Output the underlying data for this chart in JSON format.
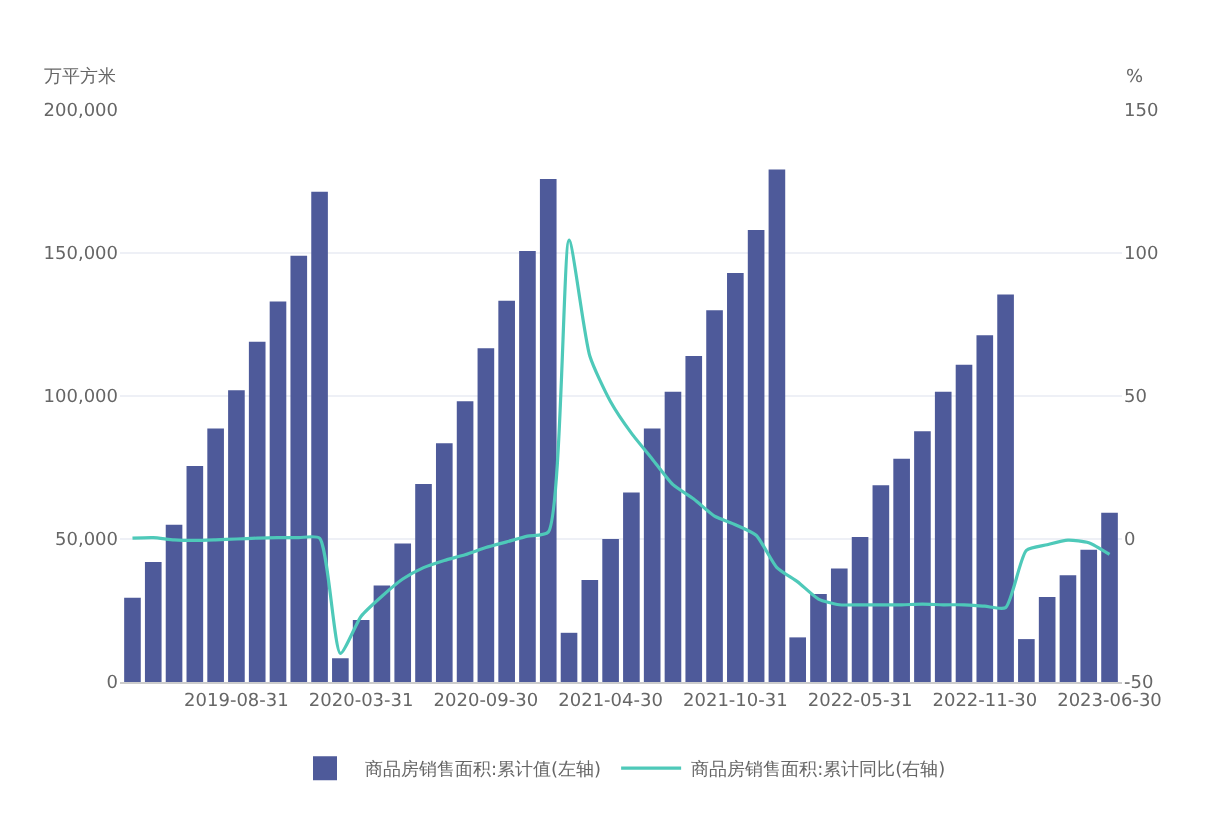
{
  "chart_data": {
    "type": "bar",
    "categories": [
      null,
      null,
      null,
      null,
      null,
      "2019-08-31",
      null,
      null,
      null,
      null,
      null,
      "2020-03-31",
      null,
      null,
      null,
      null,
      null,
      "2020-09-30",
      null,
      null,
      null,
      null,
      null,
      "2021-04-30",
      null,
      null,
      null,
      null,
      null,
      "2021-10-31",
      null,
      null,
      null,
      null,
      null,
      "2022-05-31",
      null,
      null,
      null,
      null,
      null,
      "2022-11-30",
      null,
      null,
      null,
      null,
      null,
      "2023-06-30"
    ],
    "series": [
      {
        "name": "商品房销售面积:累计值(左轴)",
        "color": "#4e5a9a",
        "values": [
          29500,
          42000,
          55000,
          75500,
          88600,
          102000,
          119000,
          133000,
          149000,
          171400,
          8300,
          21700,
          33700,
          48400,
          69200,
          83500,
          98200,
          116700,
          133300,
          150700,
          175900,
          17200,
          35700,
          50000,
          66300,
          88600,
          101500,
          114000,
          130000,
          143000,
          158000,
          179200,
          15600,
          30800,
          39700,
          50700,
          68800,
          78100,
          87700,
          101500,
          110900,
          121200,
          135500,
          15000,
          29700,
          37300,
          46200,
          59200
        ]
      },
      {
        "name": "商品房销售面积:累计同比(右轴)",
        "type": "line",
        "axis": "y2",
        "color": "#4ec9b9",
        "values": [
          0.3,
          0.5,
          -0.3,
          -0.5,
          -0.3,
          0,
          0.3,
          0.5,
          0.5,
          0.3,
          -40,
          -27,
          -20,
          -14,
          -10,
          -7.5,
          -5.5,
          -3,
          -1,
          1,
          2.4,
          104.5,
          64,
          48,
          37,
          28,
          19,
          14,
          8,
          5,
          1.3,
          -10,
          -15,
          -21,
          -23,
          -23,
          -23,
          -23,
          -22.8,
          -23,
          -23,
          -23.5,
          -24,
          -4,
          -2,
          -0.4,
          -1.3,
          -5.4
        ]
      }
    ],
    "ylabel": "万平方米",
    "y2label": "%",
    "ylim": [
      0,
      200000
    ],
    "yticks": [
      {
        "value": 0,
        "label": "0"
      },
      {
        "value": 50000,
        "label": "50,000"
      },
      {
        "value": 100000,
        "label": "100,000"
      },
      {
        "value": 150000,
        "label": "150,000"
      },
      {
        "value": 200000,
        "label": "200,000"
      }
    ],
    "y2lim": [
      -50,
      150
    ],
    "y2ticks": [
      -50,
      0,
      50,
      100,
      150
    ],
    "grid": "y",
    "legend": "bottom"
  }
}
